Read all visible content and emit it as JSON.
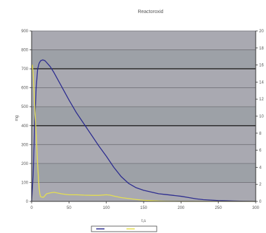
{
  "chart_data": {
    "type": "line",
    "title": "Reactoroxid",
    "xlabel": "t,s",
    "ylabel": "mg",
    "y2label": "",
    "xlim": [
      0,
      300
    ],
    "ylim": [
      0,
      900
    ],
    "y2lim": [
      0,
      20
    ],
    "x_ticks": [
      "0",
      "50",
      "100",
      "150",
      "200",
      "250",
      "300"
    ],
    "y_ticks": [
      "0",
      "100",
      "200",
      "300",
      "400",
      "500",
      "600",
      "700",
      "800",
      "900"
    ],
    "y2_ticks": [
      "0",
      "2",
      "4",
      "6",
      "8",
      "10",
      "12",
      "14",
      "16",
      "18",
      "20"
    ],
    "grid": true,
    "plot_background": "#a9a9b1",
    "bands": [
      {
        "from": 100,
        "to": 200,
        "color": "#9da1a7"
      },
      {
        "from": 400,
        "to": 500,
        "color": "#9da1a7"
      },
      {
        "from": 700,
        "to": 800,
        "color": "#9da1a7"
      }
    ],
    "series": [
      {
        "axis": "y2",
        "color": "#2b2b8f",
        "x": [
          0,
          2,
          4,
          6,
          8,
          10,
          12,
          15,
          18,
          20,
          22,
          25,
          30,
          40,
          50,
          60,
          70,
          80,
          90,
          100,
          110,
          120,
          130,
          140,
          150,
          160,
          170,
          180,
          190,
          200,
          210,
          220,
          230,
          240,
          250,
          260,
          270,
          280,
          290,
          300
        ],
        "values": [
          0,
          3,
          8.5,
          13.2,
          15.5,
          16.2,
          16.5,
          16.6,
          16.5,
          16.3,
          16.1,
          15.8,
          15.1,
          13.5,
          11.9,
          10.4,
          9.1,
          7.8,
          6.5,
          5.3,
          4.0,
          2.9,
          2.1,
          1.6,
          1.3,
          1.1,
          0.9,
          0.8,
          0.7,
          0.6,
          0.45,
          0.3,
          0.2,
          0.15,
          0.1,
          0.08,
          0.05,
          0.03,
          0.02,
          0.0
        ]
      },
      {
        "axis": "y",
        "color": "#e6e04f",
        "x": [
          0,
          1,
          2,
          3,
          4,
          5,
          6,
          7,
          8,
          9,
          10,
          11,
          12,
          14,
          16,
          20,
          25,
          30,
          40,
          50,
          60,
          70,
          80,
          90,
          100,
          105,
          110,
          120,
          130,
          140,
          150,
          160,
          170,
          180,
          200,
          220,
          240,
          260,
          280,
          300
        ],
        "values": [
          700,
          720,
          680,
          600,
          520,
          440,
          360,
          280,
          200,
          130,
          70,
          40,
          25,
          22,
          22,
          40,
          45,
          48,
          40,
          35,
          35,
          33,
          32,
          32,
          35,
          33,
          28,
          20,
          15,
          10,
          6,
          4,
          2,
          1,
          0,
          0,
          0,
          0,
          0,
          0
        ]
      }
    ],
    "legend": {
      "placement": "bottom",
      "entries": [
        "",
        ""
      ]
    }
  }
}
